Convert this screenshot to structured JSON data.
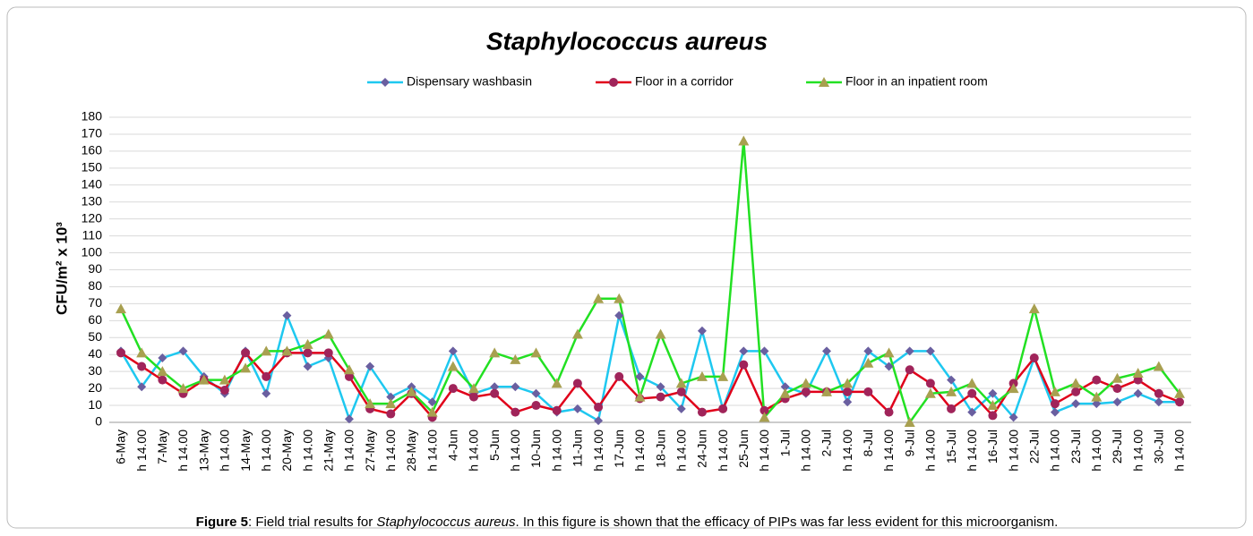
{
  "chart_data": {
    "type": "line",
    "title": "Staphylococcus aureus",
    "y_label": "CFU/m² x 10³",
    "categories": [
      "6-May",
      "h 14.00",
      "7-May",
      "h 14.00",
      "13-May",
      "h 14.00",
      "14-May",
      "h 14.00",
      "20-May",
      "h 14.00",
      "21-May",
      "h 14.00",
      "27-May",
      "h 14.00",
      "28-May",
      "h 14.00",
      "4-Jun",
      "h 14.00",
      "5-Jun",
      "h 14.00",
      "10-Jun",
      "h 14.00",
      "11-Jun",
      "h 14.00",
      "17-Jun",
      "h 14.00",
      "18-Jun",
      "h 14.00",
      "24-Jun",
      "h 14.00",
      "25-Jun",
      "h 14.00",
      "1-Jul",
      "h 14.00",
      "2-Jul",
      "h 14.00",
      "8-Jul",
      "h 14.00",
      "9-Jul",
      "h 14.00",
      "15-Jul",
      "h 14.00",
      "16-Jul",
      "h 14.00",
      "22-Jul",
      "h 14.00",
      "23-Jul",
      "h 14.00",
      "29-Jul",
      "h 14.00",
      "30-Jul",
      "h 14.00"
    ],
    "series": [
      {
        "name": "Dispensary washbasin",
        "color": "#1ec8f0",
        "marker": "diamond",
        "marker_color": "#6a5fa0",
        "values": [
          42,
          21,
          38,
          42,
          27,
          17,
          42,
          17,
          63,
          33,
          38,
          2,
          33,
          15,
          21,
          12,
          42,
          17,
          21,
          21,
          17,
          6,
          8,
          1,
          63,
          27,
          21,
          8,
          54,
          8,
          42,
          42,
          21,
          17,
          42,
          12,
          42,
          33,
          42,
          42,
          25,
          6,
          17,
          3,
          38,
          6,
          11,
          11,
          12,
          17,
          12,
          12
        ]
      },
      {
        "name": "Floor in a corridor",
        "color": "#e0001a",
        "marker": "circle",
        "marker_color": "#a0245a",
        "values": [
          41,
          33,
          25,
          17,
          25,
          19,
          41,
          27,
          41,
          41,
          41,
          27,
          8,
          5,
          17,
          3,
          20,
          15,
          17,
          6,
          10,
          7,
          23,
          9,
          27,
          14,
          15,
          18,
          6,
          8,
          34,
          7,
          14,
          18,
          18,
          18,
          18,
          6,
          31,
          23,
          8,
          17,
          4,
          23,
          38,
          11,
          18,
          25,
          20,
          25,
          17,
          12
        ]
      },
      {
        "name": "Floor in an inpatient room",
        "color": "#22e022",
        "marker": "triangle",
        "marker_color": "#a8a050",
        "values": [
          67,
          41,
          30,
          20,
          25,
          25,
          32,
          42,
          42,
          46,
          52,
          31,
          11,
          11,
          18,
          6,
          33,
          20,
          41,
          37,
          41,
          23,
          52,
          73,
          73,
          15,
          52,
          23,
          27,
          27,
          166,
          3,
          17,
          23,
          18,
          23,
          35,
          41,
          0,
          17,
          18,
          23,
          10,
          20,
          67,
          18,
          23,
          15,
          26,
          29,
          33,
          17
        ]
      }
    ],
    "ylim": [
      0,
      180
    ],
    "yticks": [
      0,
      10,
      20,
      30,
      40,
      50,
      60,
      70,
      80,
      90,
      100,
      110,
      120,
      130,
      140,
      150,
      160,
      170,
      180
    ],
    "grid": true,
    "legend": "top"
  },
  "caption": {
    "label": "Figure 5",
    "text": [
      ": Field trial results for ",
      "Staphylococcus aureus",
      ". In this figure is shown that the efficacy of PIPs was far less evident for this microorganism."
    ]
  }
}
